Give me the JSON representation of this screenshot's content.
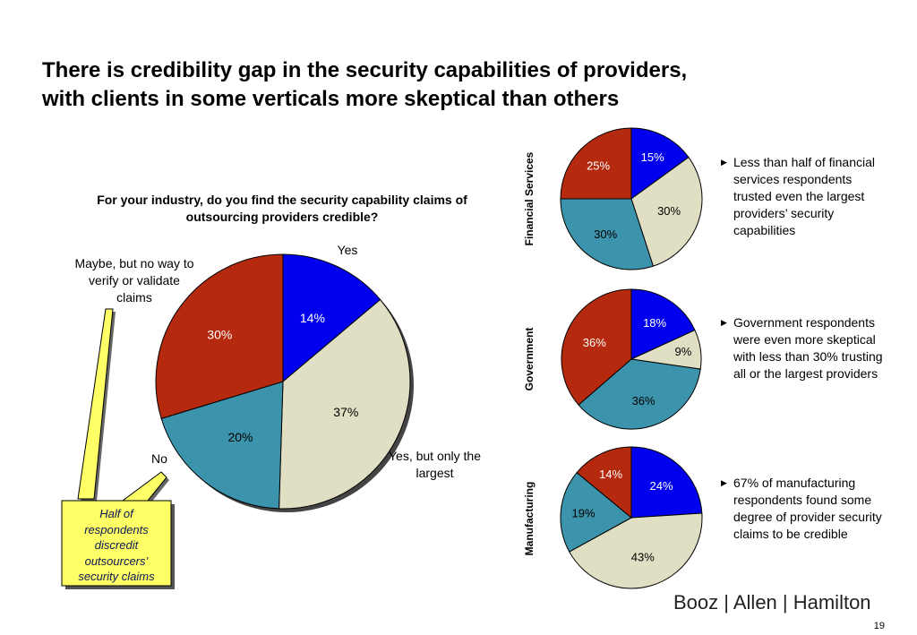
{
  "title": {
    "line1": "There is credibility gap in the security capabilities of providers,",
    "line2": "with clients in some verticals more skeptical than others"
  },
  "main_chart": {
    "question": "For your industry, do you find the security capability claims of outsourcing providers credible?",
    "labels": {
      "yes": "Yes",
      "yes_largest": "Yes, but only the largest",
      "no": "No",
      "maybe": "Maybe, but no way to verify or validate claims"
    }
  },
  "callout": {
    "text": "Half of respondents discredit outsourcers’ security claims",
    "fill": "#ffff66"
  },
  "bullets": [
    "Less than half of financial services respondents trusted even the largest providers’ security capabilities",
    "Government respondents were even more skeptical with less than 30% trusting all or the largest providers",
    "67% of manufacturing respondents found some degree of provider security claims to be credible"
  ],
  "logo": {
    "text": "Booz | Allen | Hamilton"
  },
  "page_number": "19",
  "colors": {
    "yes": "#0000ee",
    "yes_largest": "#e0dfc4",
    "no": "#3b93ac",
    "maybe": "#b52a0e"
  },
  "chart_data": [
    {
      "type": "pie",
      "title": "For your industry, do you find the security capability claims of outsourcing providers credible?",
      "categories": [
        "Yes",
        "Yes, but only the largest",
        "No",
        "Maybe, but no way to verify or validate claims"
      ],
      "values": [
        14,
        37,
        20,
        30
      ],
      "value_labels": [
        "14%",
        "37%",
        "20%",
        "30%"
      ]
    },
    {
      "type": "pie",
      "title": "Financial Services",
      "categories": [
        "Yes",
        "Yes, but only the largest",
        "No",
        "Maybe, but no way to verify or validate claims"
      ],
      "values": [
        15,
        30,
        30,
        25
      ],
      "value_labels": [
        "15%",
        "30%",
        "30%",
        "25%"
      ]
    },
    {
      "type": "pie",
      "title": "Government",
      "categories": [
        "Yes",
        "Yes, but only the largest",
        "No",
        "Maybe, but no way to verify or validate claims"
      ],
      "values": [
        18,
        9,
        36,
        36
      ],
      "value_labels": [
        "18%",
        "9%",
        "36%",
        "36%"
      ]
    },
    {
      "type": "pie",
      "title": "Manufacturing",
      "categories": [
        "Yes",
        "Yes, but only the largest",
        "No",
        "Maybe, but no way to verify or validate claims"
      ],
      "values": [
        24,
        43,
        19,
        14
      ],
      "value_labels": [
        "24%",
        "43%",
        "19%",
        "14%"
      ]
    }
  ]
}
